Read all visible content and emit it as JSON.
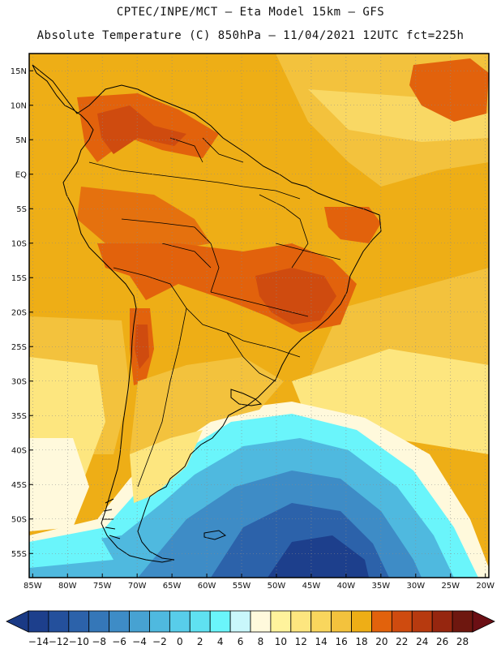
{
  "header": {
    "line1": "CPTEC/INPE/MCT –  Eta Model 15km – GFS",
    "line2": "Absolute Temperature (C) 850hPa – 11/04/2021 12UTC fct=225h"
  },
  "map": {
    "lat_labels": [
      "15N",
      "10N",
      "5N",
      "EQ",
      "5S",
      "10S",
      "15S",
      "20S",
      "25S",
      "30S",
      "35S",
      "40S",
      "45S",
      "50S",
      "55S"
    ],
    "lon_labels": [
      "85W",
      "80W",
      "75W",
      "70W",
      "65W",
      "60W",
      "55W",
      "50W",
      "45W",
      "40W",
      "35W",
      "30W",
      "25W",
      "20W"
    ],
    "lat_range": [
      17.5,
      -58.5
    ],
    "lon_range": [
      -85.5,
      -19.5
    ]
  },
  "colorbar": {
    "labels": [
      "-14",
      "-12",
      "-10",
      "-8",
      "-6",
      "-4",
      "-2",
      "0",
      "2",
      "4",
      "6",
      "8",
      "10",
      "12",
      "14",
      "16",
      "18",
      "20",
      "22",
      "24",
      "26",
      "28"
    ],
    "colors": [
      "#1d3f8c",
      "#24509c",
      "#2c62aa",
      "#3577b8",
      "#3e8cc6",
      "#47a2d2",
      "#4fb9df",
      "#58cdea",
      "#5fe1f1",
      "#6af5fb",
      "#c9f7fb",
      "#fff9dc",
      "#fff39c",
      "#fde67f",
      "#f9d65d",
      "#f3c23d",
      "#eeae16",
      "#e2620c",
      "#cf4b0f",
      "#b73a0f",
      "#96260f",
      "#6e170f"
    ],
    "low_color": "#1a3a85",
    "high_color": "#6b0f14"
  },
  "palette": {
    "warm": "#eeae16",
    "mid": "#f3c23d",
    "hot": "#e2620c",
    "hotter": "#cf4b0f",
    "cool": "#fde67f",
    "pale": "#fff39c",
    "cream": "#fff9dc",
    "aqua": "#6af5fb",
    "cyan": "#4fb9df",
    "blue1": "#3e8cc6",
    "blue2": "#2c62aa",
    "blue3": "#1d3f8c",
    "land_line": "#000000",
    "grid": "#8a8a8a"
  }
}
